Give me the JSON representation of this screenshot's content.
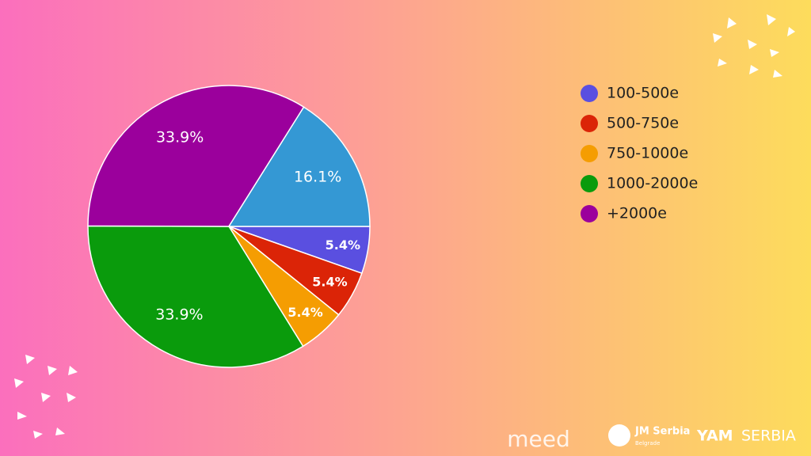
{
  "chart_data": {
    "type": "pie",
    "categories": [
      "100-500e",
      "500-750e",
      "750-1000e",
      "1000-2000e",
      "+2000e",
      null
    ],
    "values": [
      5.4,
      5.4,
      5.4,
      33.9,
      33.9,
      16.1
    ],
    "value_labels": [
      "5.4%",
      "5.4%",
      "5.4%",
      "33.9%",
      "33.9%",
      "16.1%"
    ],
    "colors": [
      "#5a4fe0",
      "#db2407",
      "#f59d02",
      "#0a9b0c",
      "#9b009c",
      "#3498d4"
    ],
    "legend": "right"
  },
  "footer": {
    "logos": [
      "meed",
      "JM Serbia",
      "Belgrade",
      "YAM",
      "SERBIA"
    ]
  }
}
